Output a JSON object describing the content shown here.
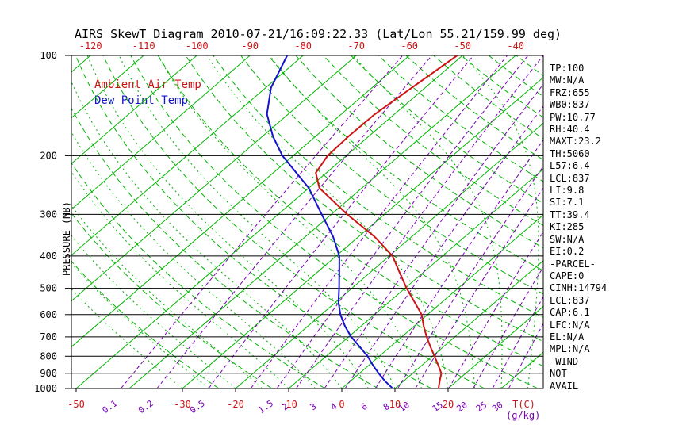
{
  "chart_data": {
    "type": "skewt",
    "title": "AIRS SkewT Diagram 2010-07-21/16:09:22.33 (Lat/Lon 55.21/159.99 deg)",
    "legend": [
      {
        "label": "Ambient Air Temp",
        "color": "#cc1414"
      },
      {
        "label": "Dew Point Temp",
        "color": "#1414cc"
      }
    ],
    "pressure_axis": {
      "label": "PRESSURE (MB)",
      "scale": "log",
      "range": [
        100,
        1000
      ],
      "ticks": [
        100,
        200,
        300,
        400,
        500,
        600,
        700,
        800,
        900,
        1000
      ]
    },
    "temp_axis": {
      "unit_label": "T(C)",
      "top_labels": [
        -120,
        -110,
        -100,
        -90,
        -80,
        -70,
        -60,
        -50,
        -40
      ],
      "bottom_labels": [
        -50,
        -30,
        -20,
        -10,
        0,
        10,
        20
      ]
    },
    "mixing_ratio_axis": {
      "unit_label": "(g/kg)",
      "labels": [
        0.1,
        0.2,
        0.5,
        1.5,
        2,
        3,
        4,
        6,
        8,
        10,
        15,
        20,
        25,
        30
      ],
      "lines": [
        0.1,
        0.2,
        0.5,
        1,
        1.5,
        2,
        3,
        4,
        6,
        8,
        10,
        15,
        20,
        25,
        30
      ]
    },
    "isotherms_C": {
      "min": -160,
      "max": 40,
      "step": 10
    },
    "dry_adiabats_K": {
      "min": 250,
      "max": 460,
      "step": 10
    },
    "moist_adiabats_startC": {
      "min": -30,
      "max": 45,
      "step": 5
    },
    "series": [
      {
        "name": "Ambient Air Temp",
        "color": "#cc1414",
        "points_p_t": [
          [
            1000,
            18.2
          ],
          [
            950,
            16.8
          ],
          [
            900,
            15.4
          ],
          [
            850,
            13.0
          ],
          [
            800,
            10.4
          ],
          [
            750,
            7.6
          ],
          [
            700,
            4.7
          ],
          [
            650,
            1.8
          ],
          [
            600,
            -1.1
          ],
          [
            550,
            -5.2
          ],
          [
            500,
            -9.7
          ],
          [
            450,
            -14.3
          ],
          [
            400,
            -19.4
          ],
          [
            350,
            -27.0
          ],
          [
            300,
            -37.0
          ],
          [
            250,
            -48.0
          ],
          [
            225,
            -52.0
          ],
          [
            200,
            -53.5
          ],
          [
            175,
            -53.8
          ],
          [
            150,
            -53.7
          ],
          [
            125,
            -52.5
          ],
          [
            100,
            -51.0
          ]
        ]
      },
      {
        "name": "Dew Point Temp",
        "color": "#1414cc",
        "points_p_t": [
          [
            1000,
            9.6
          ],
          [
            950,
            6.5
          ],
          [
            900,
            3.6
          ],
          [
            850,
            0.7
          ],
          [
            800,
            -2.2
          ],
          [
            750,
            -5.7
          ],
          [
            700,
            -9.5
          ],
          [
            650,
            -13.0
          ],
          [
            600,
            -16.4
          ],
          [
            550,
            -19.5
          ],
          [
            500,
            -22.4
          ],
          [
            450,
            -25.7
          ],
          [
            400,
            -29.4
          ],
          [
            350,
            -34.8
          ],
          [
            300,
            -41.8
          ],
          [
            250,
            -50.0
          ],
          [
            200,
            -62.0
          ],
          [
            175,
            -68.0
          ],
          [
            150,
            -74.0
          ],
          [
            125,
            -79.0
          ],
          [
            100,
            -83.0
          ]
        ]
      }
    ],
    "colors": {
      "isotherm_green": "#00b400",
      "adiabat_green": "#00b400",
      "mixing_purple": "#7a00b8",
      "grid_black": "#000000",
      "background": "#ffffff"
    }
  },
  "stats_panel": {
    "items": [
      "TP:100",
      "MW:N/A",
      "FRZ:655",
      "WB0:837",
      "PW:10.77",
      "RH:40.4",
      "MAXT:23.2",
      "TH:5060",
      "L57:6.4",
      "LCL:837",
      "LI:9.8",
      "SI:7.1",
      "TT:39.4",
      "KI:285",
      "SW:N/A",
      "EI:0.2",
      "-PARCEL-",
      "CAPE:0",
      "CINH:14794",
      "LCL:837",
      "CAP:6.1",
      "LFC:N/A",
      "EL:N/A",
      "MPL:N/A",
      "-WIND-",
      "NOT",
      "AVAIL"
    ]
  }
}
